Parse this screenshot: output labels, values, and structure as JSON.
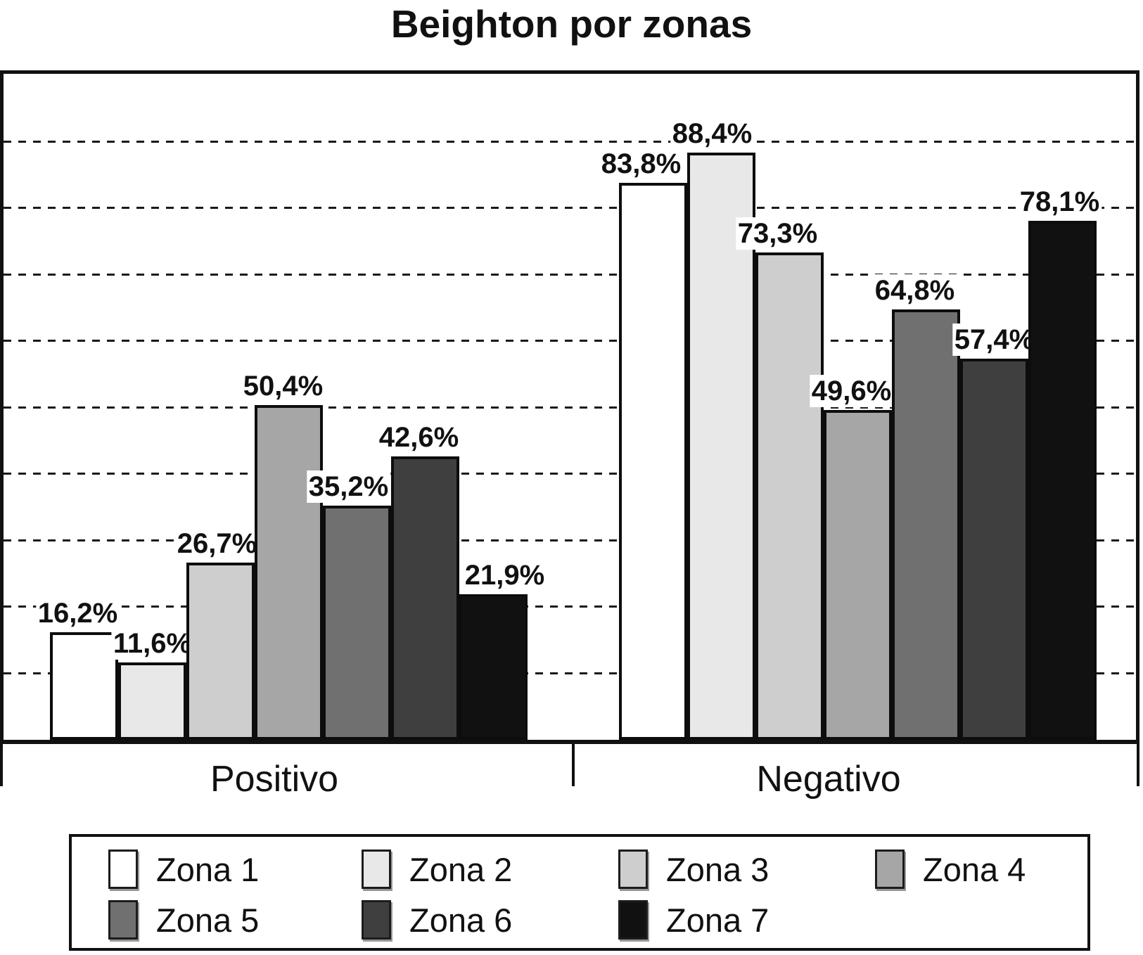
{
  "title": "Beighton por zonas",
  "chart_data": {
    "type": "bar",
    "title": "Beighton por zonas",
    "categories": [
      "Positivo",
      "Negativo"
    ],
    "ylim": [
      0,
      100
    ],
    "grid": "dashed horizontal gridlines every 10%",
    "gridline_pcts": [
      10,
      20,
      30,
      40,
      50,
      60,
      70,
      80,
      90
    ],
    "legend_position": "bottom",
    "value_format": "percent with comma decimal",
    "series": [
      {
        "name": "Zona 1",
        "color": "#ffffff",
        "values": [
          16.2,
          83.8
        ],
        "labels": [
          "16,2%",
          "83,8%"
        ],
        "label_dx": [
          -9,
          -17
        ]
      },
      {
        "name": "Zona 2",
        "color": "#e8e8e8",
        "values": [
          11.6,
          88.4
        ],
        "labels": [
          "11,6%",
          "88,4%"
        ],
        "label_dx": [
          0,
          -13
        ]
      },
      {
        "name": "Zona 3",
        "color": "#cecece",
        "values": [
          26.7,
          73.3
        ],
        "labels": [
          "26,7%",
          "73,3%"
        ],
        "label_dx": [
          -5,
          -17
        ]
      },
      {
        "name": "Zona 4",
        "color": "#a6a6a6",
        "values": [
          50.4,
          49.6
        ],
        "labels": [
          "50,4%",
          "49,6%"
        ],
        "label_dx": [
          -8,
          -9
        ]
      },
      {
        "name": "Zona 5",
        "color": "#707070",
        "values": [
          35.2,
          64.8
        ],
        "labels": [
          "35,2%",
          "64,8%"
        ],
        "label_dx": [
          -12,
          -16
        ]
      },
      {
        "name": "Zona 6",
        "color": "#3f3f3f",
        "values": [
          42.6,
          57.4
        ],
        "labels": [
          "42,6%",
          "57,4%"
        ],
        "label_dx": [
          -9,
          0
        ]
      },
      {
        "name": "Zona 7",
        "color": "#111111",
        "values": [
          21.9,
          78.1
        ],
        "labels": [
          "21,9%",
          "78,1%"
        ],
        "label_dx": [
          16,
          -4
        ]
      }
    ]
  }
}
